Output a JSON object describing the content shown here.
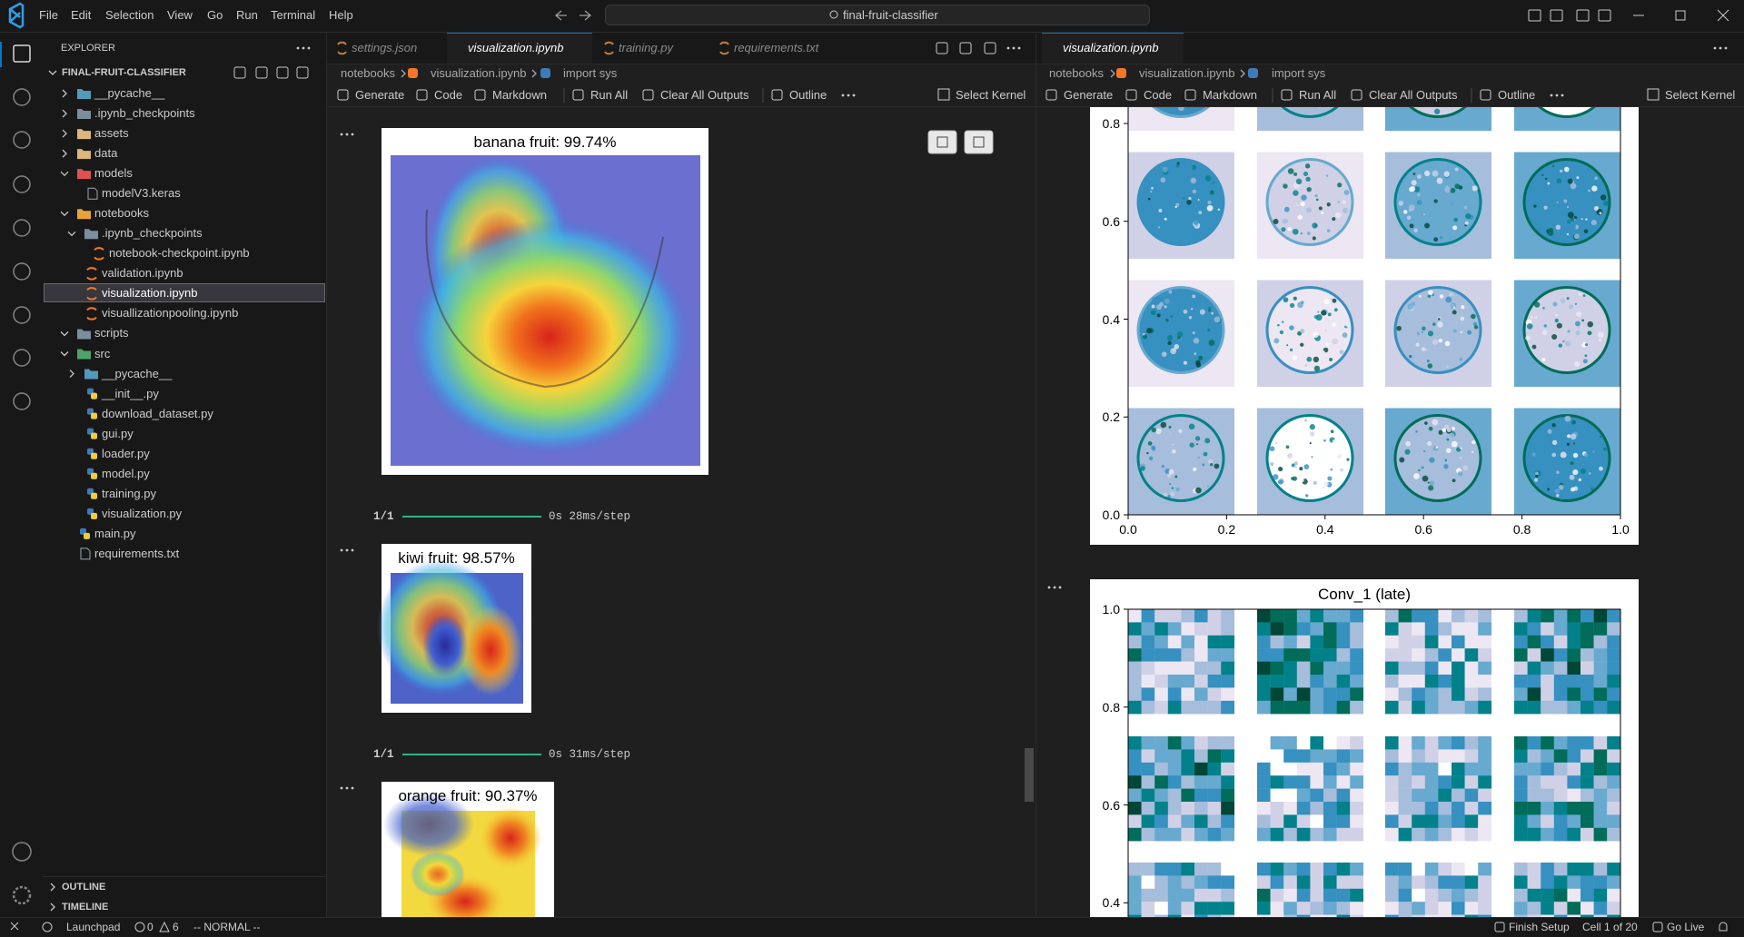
{
  "title_bar": {
    "menu": [
      "File",
      "Edit",
      "Selection",
      "View",
      "Go",
      "Run",
      "Terminal",
      "Help"
    ],
    "search": "final-fruit-classifier"
  },
  "explorer": {
    "title": "EXPLORER",
    "root": "FINAL-FRUIT-CLASSIFIER",
    "tree": [
      {
        "label": "__pycache__",
        "open": false
      },
      {
        "label": ".ipynb_checkpoints",
        "open": false
      },
      {
        "label": "assets",
        "open": false
      },
      {
        "label": "data",
        "open": false
      },
      {
        "label": "models",
        "open": true,
        "children": [
          {
            "label": "modelV3.keras"
          }
        ]
      },
      {
        "label": "notebooks",
        "open": true,
        "children": [
          {
            "label": ".ipynb_checkpoints",
            "open": true,
            "children": [
              {
                "label": "notebook-checkpoint.ipynb"
              }
            ]
          },
          {
            "label": "validation.ipynb"
          },
          {
            "label": "visualization.ipynb",
            "selected": true
          },
          {
            "label": "visuallizationpooling.ipynb"
          }
        ]
      },
      {
        "label": "scripts",
        "open": true
      },
      {
        "label": "src",
        "open": true,
        "children": [
          {
            "label": "__pycache__",
            "open": false
          },
          {
            "label": "__init__.py"
          },
          {
            "label": "download_dataset.py"
          },
          {
            "label": "gui.py"
          },
          {
            "label": "loader.py"
          },
          {
            "label": "model.py"
          },
          {
            "label": "training.py"
          },
          {
            "label": "visualization.py"
          }
        ]
      },
      {
        "label": "main.py"
      },
      {
        "label": "requirements.txt"
      }
    ],
    "outline": "OUTLINE",
    "timeline": "TIMELINE"
  },
  "left_editor": {
    "tabs": [
      {
        "label": "settings.json"
      },
      {
        "label": "visualization.ipynb",
        "active": true
      },
      {
        "label": "training.py"
      },
      {
        "label": "requirements.txt"
      }
    ],
    "breadcrumb": [
      "notebooks",
      "visualization.ipynb",
      "import sys"
    ],
    "toolbar": [
      "Generate",
      "Code",
      "Markdown",
      "Run All",
      "Clear All Outputs",
      "Outline"
    ],
    "kernel": "Select Kernel",
    "outputs": [
      {
        "caption": "banana fruit: 99.74%"
      },
      {
        "step": "1/1",
        "timing": "0s 28ms/step"
      },
      {
        "caption": "kiwi fruit: 98.57%"
      },
      {
        "step": "1/1",
        "timing": "0s 31ms/step"
      },
      {
        "caption": "orange fruit: 90.37%"
      }
    ]
  },
  "right_editor": {
    "tabs": [
      {
        "label": "visualization.ipynb",
        "active": true
      }
    ],
    "breadcrumb": [
      "notebooks",
      "visualization.ipynb",
      "import sys"
    ],
    "toolbar": [
      "Generate",
      "Code",
      "Markdown",
      "Run All",
      "Clear All Outputs",
      "Outline"
    ],
    "kernel": "Select Kernel",
    "plots": [
      {
        "yticks": [
          "0.8",
          "0.6",
          "0.4",
          "0.2",
          "0.0"
        ],
        "xticks": [
          "0.0",
          "0.2",
          "0.4",
          "0.6",
          "0.8",
          "1.0"
        ]
      },
      {
        "title": "Conv_1 (late)",
        "yticks": [
          "1.0",
          "0.8",
          "0.6",
          "0.4"
        ]
      }
    ]
  },
  "status_bar": {
    "launchpad": "Launchpad",
    "errors": 0,
    "warnings": 6,
    "mode": "-- NORMAL --",
    "right": [
      "Finish Setup",
      "Cell 1 of 20",
      "Go Live"
    ]
  }
}
